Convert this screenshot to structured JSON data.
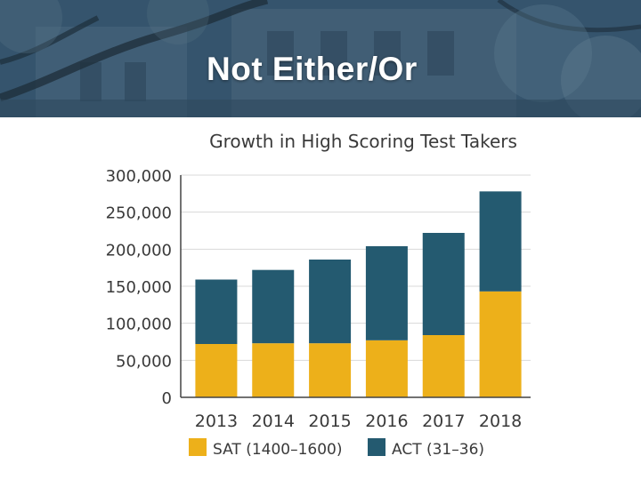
{
  "slide": {
    "title": "Not Either/Or"
  },
  "colors": {
    "sat": "#EDB01A",
    "act": "#245A70",
    "grid": "#d8d8d8",
    "axis": "#444444",
    "banner": "#34526b"
  },
  "chart_data": {
    "type": "bar",
    "stacked": true,
    "title": "Growth in High Scoring Test Takers",
    "xlabel": "",
    "ylabel": "",
    "categories": [
      "2013",
      "2014",
      "2015",
      "2016",
      "2017",
      "2018"
    ],
    "series": [
      {
        "name": "SAT (1400–1600)",
        "values": [
          72000,
          73000,
          73000,
          77000,
          84000,
          143000
        ]
      },
      {
        "name": "ACT (31–36)",
        "values": [
          87000,
          99000,
          113000,
          127000,
          138000,
          135000
        ]
      }
    ],
    "ylim": [
      0,
      300000
    ],
    "yticks": [
      0,
      50000,
      100000,
      150000,
      200000,
      250000,
      300000
    ],
    "ytick_labels": [
      "0",
      "50,000",
      "100,000",
      "150,000",
      "200,000",
      "250,000",
      "300,000"
    ],
    "grid": true,
    "legend_position": "bottom"
  }
}
